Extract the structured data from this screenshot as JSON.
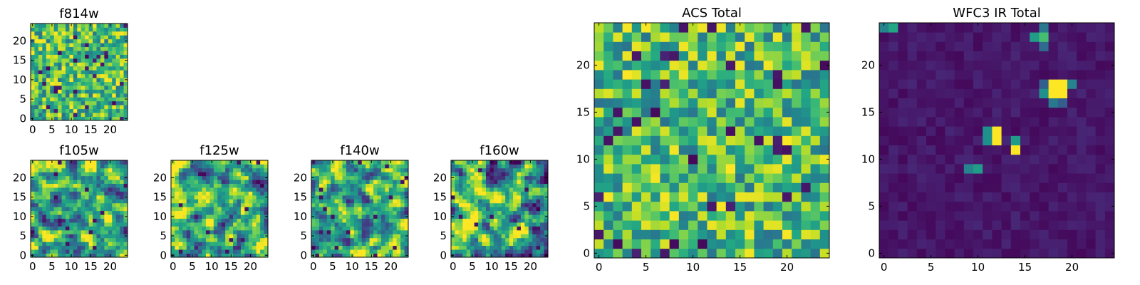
{
  "chart_data": [
    {
      "type": "heatmap",
      "id": "f814w",
      "title": "f814w",
      "grid_size": 25,
      "colormap": "viridis",
      "xticks": [
        0,
        5,
        10,
        15,
        20
      ],
      "yticks": [
        0,
        5,
        10,
        15,
        20
      ],
      "xlim": [
        -0.5,
        24.5
      ],
      "ylim": [
        -0.5,
        24.5
      ],
      "value_profile": "uniform-high",
      "seed": 11
    },
    {
      "type": "heatmap",
      "id": "f105w",
      "title": "f105w",
      "grid_size": 25,
      "colormap": "viridis",
      "xticks": [
        0,
        5,
        10,
        15,
        20
      ],
      "yticks": [
        0,
        5,
        10,
        15,
        20
      ],
      "xlim": [
        -0.5,
        24.5
      ],
      "ylim": [
        -0.5,
        24.5
      ],
      "value_profile": "smooth-noise",
      "seed": 23
    },
    {
      "type": "heatmap",
      "id": "f125w",
      "title": "f125w",
      "grid_size": 25,
      "colormap": "viridis",
      "xticks": [
        0,
        5,
        10,
        15,
        20
      ],
      "yticks": [
        0,
        5,
        10,
        15,
        20
      ],
      "xlim": [
        -0.5,
        24.5
      ],
      "ylim": [
        -0.5,
        24.5
      ],
      "value_profile": "smooth-noise",
      "seed": 37
    },
    {
      "type": "heatmap",
      "id": "f140w",
      "title": "f140w",
      "grid_size": 25,
      "colormap": "viridis",
      "xticks": [
        0,
        5,
        10,
        15,
        20
      ],
      "yticks": [
        0,
        5,
        10,
        15,
        20
      ],
      "xlim": [
        -0.5,
        24.5
      ],
      "ylim": [
        -0.5,
        24.5
      ],
      "value_profile": "smooth-noise",
      "seed": 41
    },
    {
      "type": "heatmap",
      "id": "f160w",
      "title": "f160w",
      "grid_size": 25,
      "colormap": "viridis",
      "xticks": [
        0,
        5,
        10,
        15,
        20
      ],
      "yticks": [
        0,
        5,
        10,
        15,
        20
      ],
      "xlim": [
        -0.5,
        24.5
      ],
      "ylim": [
        -0.5,
        24.5
      ],
      "value_profile": "smooth-noise",
      "seed": 53
    },
    {
      "type": "heatmap",
      "id": "acs-total",
      "title": "ACS Total",
      "grid_size": 25,
      "colormap": "viridis",
      "xticks": [
        0,
        5,
        10,
        15,
        20
      ],
      "yticks": [
        0,
        5,
        10,
        15,
        20
      ],
      "xlim": [
        -0.5,
        24.5
      ],
      "ylim": [
        -0.5,
        24.5
      ],
      "value_profile": "uniform-high",
      "seed": 67
    },
    {
      "type": "heatmap",
      "id": "wfc3-ir-total",
      "title": "WFC3 IR Total",
      "grid_size": 25,
      "colormap": "viridis",
      "xticks": [
        0,
        5,
        10,
        15,
        20
      ],
      "yticks": [
        0,
        5,
        10,
        15,
        20
      ],
      "xlim": [
        -0.5,
        24.5
      ],
      "ylim": [
        -0.5,
        24.5
      ],
      "value_profile": "dark-background",
      "seed": 79,
      "bright_pixels": [
        {
          "x": 0,
          "y": 24,
          "value": 0.45
        },
        {
          "x": 1,
          "y": 24,
          "value": 0.6
        },
        {
          "x": 16,
          "y": 23,
          "value": 0.55
        },
        {
          "x": 17,
          "y": 23,
          "value": 0.7
        },
        {
          "x": 17,
          "y": 24,
          "value": 0.4
        },
        {
          "x": 17,
          "y": 22,
          "value": 0.35
        },
        {
          "x": 18,
          "y": 17,
          "value": 1.0
        },
        {
          "x": 19,
          "y": 17,
          "value": 1.0
        },
        {
          "x": 18,
          "y": 18,
          "value": 1.0
        },
        {
          "x": 19,
          "y": 18,
          "value": 1.0
        },
        {
          "x": 17,
          "y": 17,
          "value": 0.5
        },
        {
          "x": 20,
          "y": 18,
          "value": 0.45
        },
        {
          "x": 18,
          "y": 16,
          "value": 0.4
        },
        {
          "x": 19,
          "y": 16,
          "value": 0.3
        },
        {
          "x": 17,
          "y": 18,
          "value": 0.3
        },
        {
          "x": 11,
          "y": 13,
          "value": 0.5
        },
        {
          "x": 11,
          "y": 12,
          "value": 0.5
        },
        {
          "x": 12,
          "y": 13,
          "value": 1.0
        },
        {
          "x": 12,
          "y": 12,
          "value": 1.0
        },
        {
          "x": 14,
          "y": 12,
          "value": 0.55
        },
        {
          "x": 14,
          "y": 11,
          "value": 1.0
        },
        {
          "x": 9,
          "y": 9,
          "value": 0.45
        },
        {
          "x": 10,
          "y": 9,
          "value": 0.55
        }
      ]
    }
  ]
}
